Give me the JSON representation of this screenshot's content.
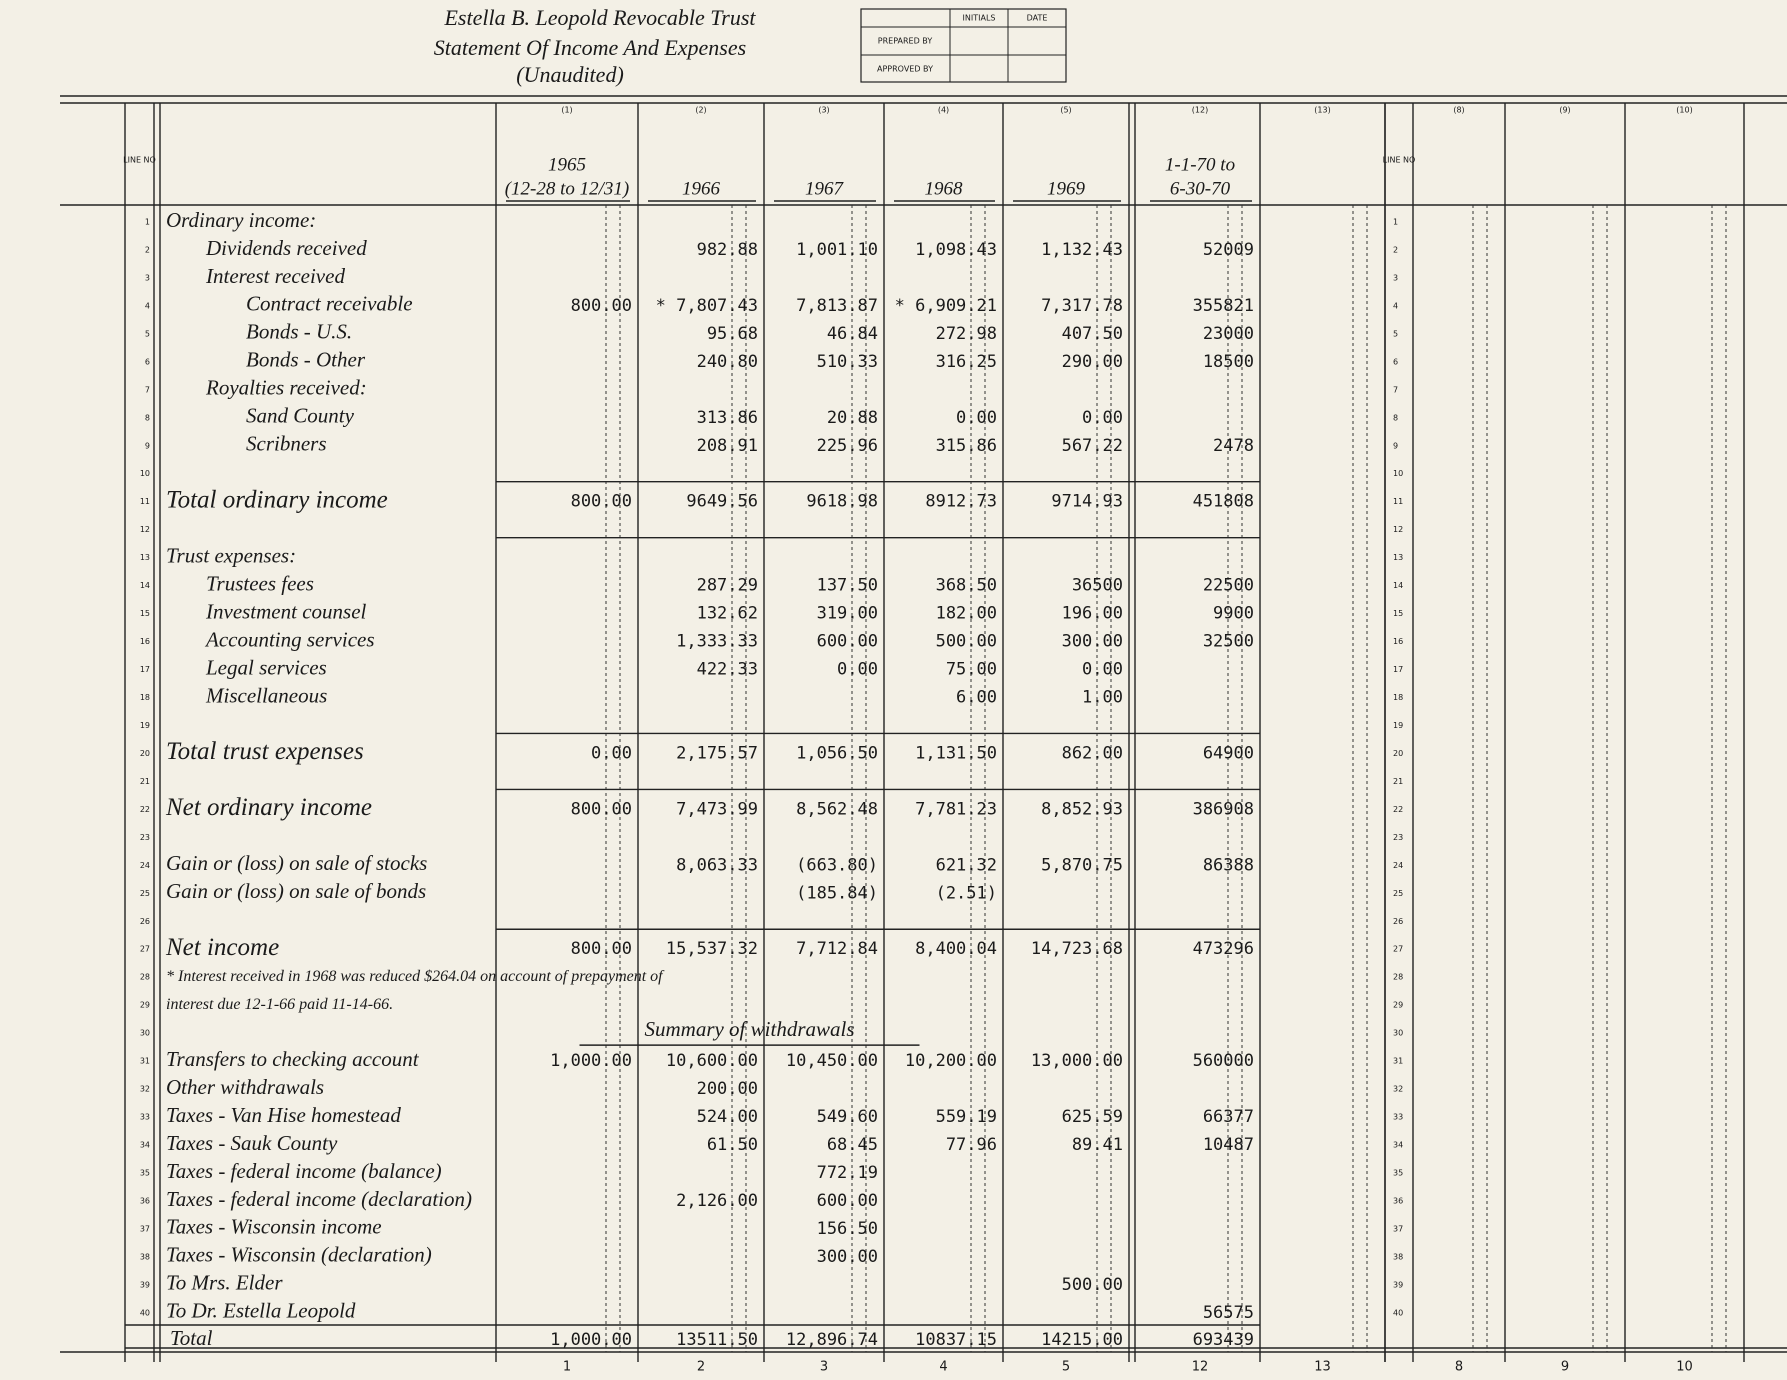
{
  "header": {
    "title": [
      "Estella B. Leopold Revocable Trust",
      "Statement Of Income And Expenses",
      "(Unaudited)"
    ],
    "signoff": {
      "columns": [
        "INITIALS",
        "DATE"
      ],
      "rows": [
        "PREPARED BY",
        "APPROVED BY"
      ]
    }
  },
  "column_numbers": [
    "(1)",
    "(2)",
    "(3)",
    "(4)",
    "(5)",
    "(12)",
    "(13)",
    "(8)",
    "(9)",
    "(10)"
  ],
  "footer_numbers": [
    "1",
    "2",
    "3",
    "4",
    "5",
    "12",
    "13",
    "8",
    "9",
    "10"
  ],
  "line_header": "LINE NO",
  "columns": [
    [
      "1965",
      "(12-28 to 12/31)"
    ],
    [
      "1966"
    ],
    [
      "1967"
    ],
    [
      "1968"
    ],
    [
      "1969"
    ],
    [
      "1-1-70 to",
      "6-30-70"
    ]
  ],
  "rows": [
    {
      "line": 1,
      "label": "Ordinary income:",
      "indent": 0,
      "values": [
        null,
        null,
        null,
        null,
        null,
        null
      ]
    },
    {
      "line": 2,
      "label": "Dividends received",
      "indent": 1,
      "values": [
        null,
        "982.88",
        "1,001.10",
        "1,098.43",
        "1,132.43",
        "52009"
      ]
    },
    {
      "line": 3,
      "label": "Interest received",
      "indent": 1,
      "values": [
        null,
        null,
        null,
        null,
        null,
        null
      ]
    },
    {
      "line": 4,
      "label": "Contract receivable",
      "indent": 2,
      "values": [
        "800.00",
        "* 7,807.43",
        "7,813.87",
        "* 6,909.21",
        "7,317.78",
        "355821"
      ]
    },
    {
      "line": 5,
      "label": "Bonds - U.S.",
      "indent": 2,
      "values": [
        null,
        "95.68",
        "46.84",
        "272.98",
        "407.50",
        "23000"
      ]
    },
    {
      "line": 6,
      "label": "Bonds - Other",
      "indent": 2,
      "values": [
        null,
        "240.80",
        "510.33",
        "316.25",
        "290.00",
        "18500"
      ]
    },
    {
      "line": 7,
      "label": "Royalties received:",
      "indent": 1,
      "values": [
        null,
        null,
        null,
        null,
        null,
        null
      ]
    },
    {
      "line": 8,
      "label": "Sand County",
      "indent": 2,
      "values": [
        null,
        "313.86",
        "20.88",
        "0.00",
        "0.00",
        null
      ]
    },
    {
      "line": 9,
      "label": "Scribners",
      "indent": 2,
      "values": [
        null,
        "208.91",
        "225.96",
        "315.86",
        "567.22",
        "2478"
      ]
    },
    {
      "line": 10,
      "label": null,
      "indent": 0,
      "values": [
        null,
        null,
        null,
        null,
        null,
        null
      ]
    },
    {
      "line": 11,
      "label": "Total ordinary income",
      "indent": 0,
      "values": [
        "800.00",
        "9649.56",
        "9618.98",
        "8912.73",
        "9714.93",
        "451808"
      ]
    },
    {
      "line": 12,
      "label": null,
      "indent": 0,
      "values": [
        null,
        null,
        null,
        null,
        null,
        null
      ]
    },
    {
      "line": 13,
      "label": "Trust expenses:",
      "indent": 0,
      "values": [
        null,
        null,
        null,
        null,
        null,
        null
      ]
    },
    {
      "line": 14,
      "label": "Trustees fees",
      "indent": 1,
      "values": [
        null,
        "287.29",
        "137.50",
        "368.50",
        "36500",
        "22500"
      ]
    },
    {
      "line": 15,
      "label": "Investment counsel",
      "indent": 1,
      "values": [
        null,
        "132.62",
        "319.00",
        "182.00",
        "196.00",
        "9900"
      ]
    },
    {
      "line": 16,
      "label": "Accounting services",
      "indent": 1,
      "values": [
        null,
        "1,333.33",
        "600.00",
        "500.00",
        "300.00",
        "32500"
      ]
    },
    {
      "line": 17,
      "label": "Legal services",
      "indent": 1,
      "values": [
        null,
        "422.33",
        "0.00",
        "75.00",
        "0.00",
        null
      ]
    },
    {
      "line": 18,
      "label": "Miscellaneous",
      "indent": 1,
      "values": [
        null,
        null,
        null,
        "6.00",
        "1.00",
        null
      ]
    },
    {
      "line": 19,
      "label": null,
      "indent": 0,
      "values": [
        null,
        null,
        null,
        null,
        null,
        null
      ]
    },
    {
      "line": 20,
      "label": "Total trust expenses",
      "indent": 0,
      "values": [
        "0.00",
        "2,175.57",
        "1,056.50",
        "1,131.50",
        "862.00",
        "64900"
      ]
    },
    {
      "line": 21,
      "label": null,
      "indent": 0,
      "values": [
        null,
        null,
        null,
        null,
        null,
        null
      ]
    },
    {
      "line": 22,
      "label": "Net ordinary income",
      "indent": 0,
      "values": [
        "800.00",
        "7,473.99",
        "8,562.48",
        "7,781.23",
        "8,852.93",
        "386908"
      ]
    },
    {
      "line": 23,
      "label": null,
      "indent": 0,
      "values": [
        null,
        null,
        null,
        null,
        null,
        null
      ]
    },
    {
      "line": 24,
      "label": "Gain or (loss) on sale of stocks",
      "indent": 0,
      "values": [
        null,
        "8,063.33",
        "(663.80)",
        "621.32",
        "5,870.75",
        "86388"
      ]
    },
    {
      "line": 25,
      "label": "Gain or (loss) on sale of bonds",
      "indent": 0,
      "values": [
        null,
        null,
        "(185.84)",
        "(2.51)",
        null,
        null
      ]
    },
    {
      "line": 26,
      "label": null,
      "indent": 0,
      "values": [
        null,
        null,
        null,
        null,
        null,
        null
      ]
    },
    {
      "line": 27,
      "label": "Net income",
      "indent": 0,
      "values": [
        "800.00",
        "15,537.32",
        "7,712.84",
        "8,400.04",
        "14,723.68",
        "473296"
      ]
    },
    {
      "line": 28,
      "label": "* Interest received in 1968 was reduced $264.04 on account of prepayment of",
      "indent": 0,
      "note": true,
      "values": [
        null,
        null,
        null,
        null,
        null,
        null
      ]
    },
    {
      "line": 29,
      "label": "interest due 12-1-66 paid 11-14-66.",
      "indent": 0,
      "note": true,
      "values": [
        null,
        null,
        null,
        null,
        null,
        null
      ]
    },
    {
      "line": 30,
      "label": "Summary of withdrawals",
      "indent": 0,
      "heading": true,
      "values": [
        null,
        null,
        null,
        null,
        null,
        null
      ]
    },
    {
      "line": 31,
      "label": "Transfers to checking account",
      "indent": 0,
      "values": [
        "1,000.00",
        "10,600.00",
        "10,450.00",
        "10,200.00",
        "13,000.00",
        "560000"
      ]
    },
    {
      "line": 32,
      "label": "Other withdrawals",
      "indent": 0,
      "values": [
        null,
        "200.00",
        null,
        null,
        null,
        null
      ]
    },
    {
      "line": 33,
      "label": "Taxes - Van Hise homestead",
      "indent": 0,
      "values": [
        null,
        "524.00",
        "549.60",
        "559.19",
        "625.59",
        "66377"
      ]
    },
    {
      "line": 34,
      "label": "Taxes - Sauk County",
      "indent": 0,
      "values": [
        null,
        "61.50",
        "68.45",
        "77.96",
        "89.41",
        "10487"
      ]
    },
    {
      "line": 35,
      "label": "Taxes - federal income (balance)",
      "indent": 0,
      "values": [
        null,
        null,
        "772.19",
        null,
        null,
        null
      ]
    },
    {
      "line": 36,
      "label": "Taxes - federal income (declaration)",
      "indent": 0,
      "values": [
        null,
        "2,126.00",
        "600.00",
        null,
        null,
        null
      ]
    },
    {
      "line": 37,
      "label": "Taxes - Wisconsin income",
      "indent": 0,
      "values": [
        null,
        null,
        "156.50",
        null,
        null,
        null
      ]
    },
    {
      "line": 38,
      "label": "Taxes - Wisconsin (declaration)",
      "indent": 0,
      "values": [
        null,
        null,
        "300.00",
        null,
        null,
        null
      ]
    },
    {
      "line": 39,
      "label": "To Mrs. Elder",
      "indent": 0,
      "values": [
        null,
        null,
        null,
        null,
        "500.00",
        null
      ]
    },
    {
      "line": 40,
      "label": "To Dr. Estella Leopold",
      "indent": 0,
      "values": [
        null,
        null,
        null,
        null,
        null,
        "56575"
      ]
    }
  ],
  "total": {
    "label": "Total",
    "values": [
      "1,000.00",
      "13511.50",
      "12,896.74",
      "10837.15",
      "14215.00",
      "693439"
    ]
  }
}
